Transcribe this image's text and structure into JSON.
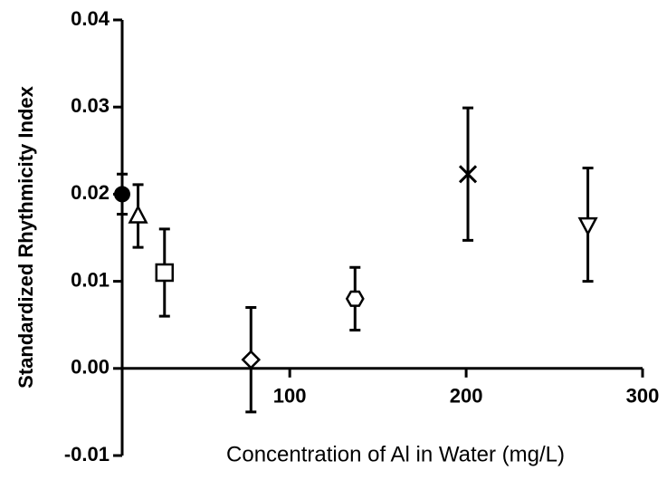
{
  "chart_data": {
    "type": "scatter",
    "y_label": "Standardized Rhythmicity Index",
    "x_label": "Concentration of Al in Water (mg/L)",
    "x": [
      5,
      14,
      29,
      78,
      137,
      201,
      269
    ],
    "values": [
      0.02,
      0.0175,
      0.011,
      0.001,
      0.008,
      0.0223,
      0.0165
    ],
    "errors": [
      0.0023,
      0.0036,
      0.005,
      0.006,
      0.0036,
      0.0076,
      0.0065
    ],
    "markers": [
      "circle-filled",
      "triangle-up",
      "square",
      "diamond",
      "hexagon",
      "cross",
      "triangle-down"
    ],
    "color": "#000000",
    "xlim": [
      5,
      300
    ],
    "xticks": [
      100,
      200,
      300
    ],
    "ylim": [
      -0.01,
      0.04
    ],
    "yticks": [
      -0.01,
      {
        "value": 0,
        "label": "0.00"
      },
      0.01,
      0.02,
      0.03,
      0.04
    ]
  }
}
